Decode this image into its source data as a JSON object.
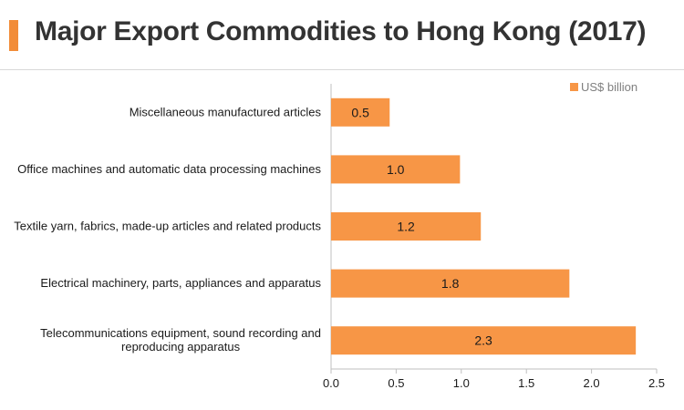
{
  "header": {
    "title": "Major Export Commodities to Hong Kong (2017)",
    "accent_color": "#f28c38"
  },
  "chart_data": {
    "type": "bar",
    "orientation": "horizontal",
    "categories": [
      "Miscellaneous manufactured articles",
      "Office machines and automatic data processing machines",
      "Textile yarn, fabrics, made-up articles and related products",
      "Electrical machinery, parts, appliances and apparatus",
      "Telecommunications equipment, sound recording and reproducing apparatus"
    ],
    "category_label_lines": [
      [
        "Miscellaneous manufactured articles"
      ],
      [
        "Office machines and automatic data processing machines"
      ],
      [
        "Textile yarn, fabrics, made-up articles and related products"
      ],
      [
        "Electrical machinery, parts, appliances and apparatus"
      ],
      [
        "Telecommunications equipment, sound recording and",
        "reproducing apparatus"
      ]
    ],
    "series": [
      {
        "name": "US$ billion",
        "values": [
          0.45,
          0.99,
          1.15,
          1.83,
          2.34
        ],
        "color": "#f79646"
      }
    ],
    "data_labels": [
      "0.5",
      "1.0",
      "1.2",
      "1.8",
      "2.3"
    ],
    "xlim": [
      0,
      2.5
    ],
    "xticks": [
      0,
      0.5,
      1.0,
      1.5,
      2.0,
      2.5
    ],
    "xtick_labels": [
      "0.0",
      "0.5",
      "1.0",
      "1.5",
      "2.0",
      "2.5"
    ],
    "xlabel": "",
    "ylabel": "",
    "grid": false,
    "legend_position": "top-right"
  }
}
